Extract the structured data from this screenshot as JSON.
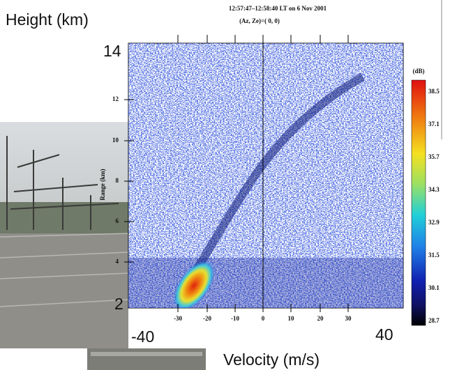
{
  "overlay": {
    "y_label": "Height (km)",
    "y_top": "14",
    "y_bottom": "2",
    "x_left": "-40",
    "x_right": "40",
    "x_label": "Velocity (m/s)"
  },
  "plot": {
    "title": "12:57:47–12:58:40 LT on 6 Nov 2001",
    "subtitle": "(Az, Ze)=(  0,   0)",
    "y_axis_label": "Range (km)",
    "y_ticks": [
      "12",
      "10",
      "8",
      "6",
      "4"
    ],
    "x_ticks": [
      "-30",
      "-20",
      "-10",
      "0",
      "10",
      "20",
      "30"
    ],
    "colorbar_unit": "(dB)",
    "colorbar_ticks": [
      "38.5",
      "37.1",
      "35.7",
      "34.3",
      "32.9",
      "31.5",
      "30.1",
      "28.7"
    ]
  }
}
